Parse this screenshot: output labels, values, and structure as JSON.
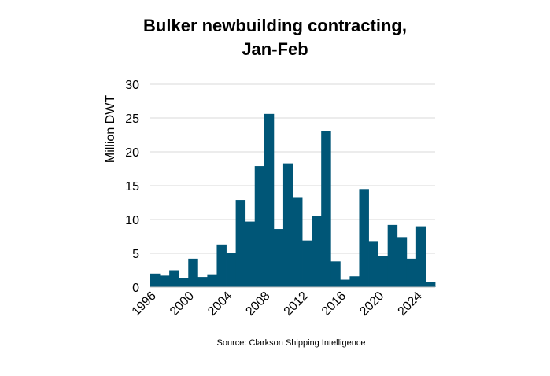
{
  "chart_data": {
    "type": "bar",
    "title_line1": "Bulker newbuilding contracting,",
    "title_line2": "Jan-Feb",
    "ylabel": "Million DWT",
    "xlabel": "",
    "source": "Source: Clarkson Shipping Intelligence",
    "ylim": [
      0,
      30
    ],
    "yticks": [
      0,
      5,
      10,
      15,
      20,
      25,
      30
    ],
    "xticks": [
      1996,
      2000,
      2004,
      2008,
      2012,
      2016,
      2020,
      2024
    ],
    "grid": true,
    "bar_color": "#005677",
    "categories": [
      1996,
      1997,
      1998,
      1999,
      2000,
      2001,
      2002,
      2003,
      2004,
      2005,
      2006,
      2007,
      2008,
      2009,
      2010,
      2011,
      2012,
      2013,
      2014,
      2015,
      2016,
      2017,
      2018,
      2019,
      2020,
      2021,
      2022,
      2023,
      2024,
      2025
    ],
    "values": [
      2.0,
      1.7,
      2.5,
      1.3,
      4.2,
      1.5,
      1.9,
      6.3,
      5.0,
      12.9,
      9.7,
      17.9,
      25.6,
      8.6,
      18.3,
      13.2,
      6.9,
      10.5,
      23.1,
      3.8,
      1.1,
      1.6,
      14.5,
      6.7,
      4.6,
      9.2,
      7.4,
      4.2,
      9.0,
      0.8
    ]
  }
}
